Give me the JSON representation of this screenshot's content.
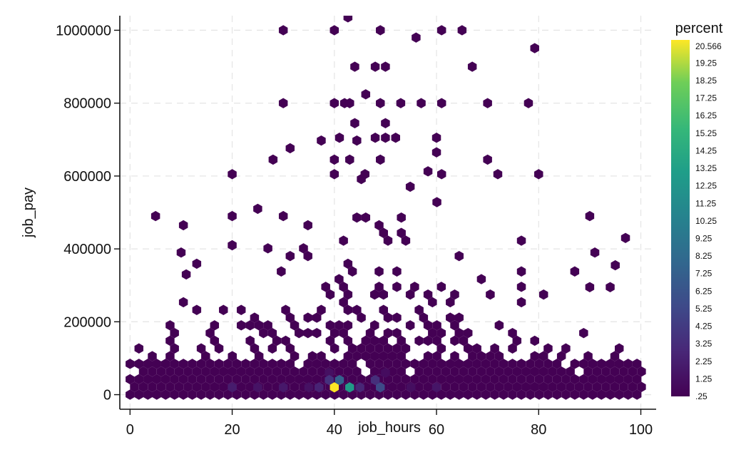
{
  "chart_data": {
    "type": "heatmap",
    "subtype": "hexbin",
    "xlabel": "job_hours",
    "ylabel": "job_pay",
    "xlim": [
      -2,
      103
    ],
    "ylim": [
      -40000,
      1040000
    ],
    "x_ticks": [
      0,
      20,
      40,
      60,
      80,
      100
    ],
    "x_tick_labels": [
      "0",
      "20",
      "40",
      "60",
      "80",
      "100"
    ],
    "y_ticks": [
      0,
      200000,
      400000,
      600000,
      800000,
      1000000
    ],
    "y_tick_labels": [
      "0",
      "200000",
      "400000",
      "600000",
      "800000",
      "1000000"
    ],
    "grid": "dashed",
    "colormap": "viridis",
    "colors": {
      "low": "#440154",
      "mid": "#21918c",
      "high": "#fde725"
    },
    "legend": {
      "title": "percent",
      "position": "right",
      "labels": [
        "20.566",
        "19.25",
        "18.25",
        "17.25",
        "16.25",
        "15.25",
        "14.25",
        "13.25",
        "12.25",
        "11.25",
        "10.25",
        "9.25",
        "8.25",
        "7.25",
        "6.25",
        "5.25",
        "4.25",
        "3.25",
        "2.25",
        "1.25",
        ".25"
      ],
      "label_values": [
        20.566,
        19.25,
        18.25,
        17.25,
        16.25,
        15.25,
        14.25,
        13.25,
        12.25,
        11.25,
        10.25,
        9.25,
        8.25,
        7.25,
        6.25,
        5.25,
        4.25,
        3.25,
        2.25,
        1.25,
        0.25
      ],
      "min": 0.25,
      "max": 20.566
    },
    "highlighted_bins": [
      {
        "x": 40,
        "y": 20000,
        "percent": 20.566
      },
      {
        "x": 43,
        "y": 20000,
        "percent": 11.3
      },
      {
        "x": 41,
        "y": 40000,
        "percent": 6.5
      },
      {
        "x": 39,
        "y": 40000,
        "percent": 3.2
      },
      {
        "x": 49,
        "y": 20000,
        "percent": 4.8
      },
      {
        "x": 48,
        "y": 40000,
        "percent": 3.0
      },
      {
        "x": 45,
        "y": 20000,
        "percent": 2.4
      },
      {
        "x": 37,
        "y": 20000,
        "percent": 2.2
      },
      {
        "x": 20,
        "y": 20000,
        "percent": 1.8
      },
      {
        "x": 30,
        "y": 20000,
        "percent": 1.6
      },
      {
        "x": 25,
        "y": 20000,
        "percent": 1.3
      },
      {
        "x": 35,
        "y": 20000,
        "percent": 1.2
      },
      {
        "x": 60,
        "y": 20000,
        "percent": 1.4
      },
      {
        "x": 55,
        "y": 20000,
        "percent": 1.0
      },
      {
        "x": 39,
        "y": 60000,
        "percent": 1.1
      },
      {
        "x": 50,
        "y": 60000,
        "percent": 0.9
      }
    ],
    "outlier_bins": [
      {
        "x": 30,
        "y": 1000000
      },
      {
        "x": 40,
        "y": 1000000
      },
      {
        "x": 49,
        "y": 1000000
      },
      {
        "x": 56,
        "y": 980000
      },
      {
        "x": 61,
        "y": 1000000
      },
      {
        "x": 65,
        "y": 1000000
      },
      {
        "x": 44,
        "y": 900000
      },
      {
        "x": 48,
        "y": 900000
      },
      {
        "x": 50,
        "y": 900000
      },
      {
        "x": 67,
        "y": 900000
      },
      {
        "x": 30,
        "y": 800000
      },
      {
        "x": 40,
        "y": 800000
      },
      {
        "x": 42,
        "y": 800000
      },
      {
        "x": 43,
        "y": 800000
      },
      {
        "x": 49,
        "y": 800000
      },
      {
        "x": 53,
        "y": 800000
      },
      {
        "x": 57,
        "y": 800000
      },
      {
        "x": 61,
        "y": 800000
      },
      {
        "x": 70,
        "y": 800000
      },
      {
        "x": 78,
        "y": 800000
      },
      {
        "x": 44,
        "y": 745000
      },
      {
        "x": 50,
        "y": 745000
      },
      {
        "x": 41,
        "y": 705000
      },
      {
        "x": 48,
        "y": 705000
      },
      {
        "x": 50,
        "y": 705000
      },
      {
        "x": 52,
        "y": 705000
      },
      {
        "x": 60,
        "y": 705000
      },
      {
        "x": 60,
        "y": 665000
      },
      {
        "x": 28,
        "y": 645000
      },
      {
        "x": 40,
        "y": 645000
      },
      {
        "x": 43,
        "y": 645000
      },
      {
        "x": 49,
        "y": 645000
      },
      {
        "x": 70,
        "y": 645000
      },
      {
        "x": 20,
        "y": 605000
      },
      {
        "x": 40,
        "y": 605000
      },
      {
        "x": 46,
        "y": 605000
      },
      {
        "x": 61,
        "y": 605000
      },
      {
        "x": 72,
        "y": 605000
      },
      {
        "x": 80,
        "y": 605000
      },
      {
        "x": 5,
        "y": 490000
      },
      {
        "x": 97,
        "y": 430000
      },
      {
        "x": 90,
        "y": 490000
      },
      {
        "x": 91,
        "y": 390000
      },
      {
        "x": 95,
        "y": 355000
      },
      {
        "x": 94,
        "y": 295000
      },
      {
        "x": 90,
        "y": 295000
      },
      {
        "x": 10,
        "y": 390000
      },
      {
        "x": 11,
        "y": 330000
      },
      {
        "x": 20,
        "y": 410000
      },
      {
        "x": 20,
        "y": 490000
      },
      {
        "x": 25,
        "y": 510000
      },
      {
        "x": 30,
        "y": 490000
      }
    ],
    "dense_region": {
      "x_range": [
        0,
        100
      ],
      "y_range": [
        0,
        500000
      ],
      "peak": {
        "x": 40,
        "y": 20000
      },
      "shape": "density decays with increasing job_pay and with distance from job_hours 40-50"
    }
  }
}
